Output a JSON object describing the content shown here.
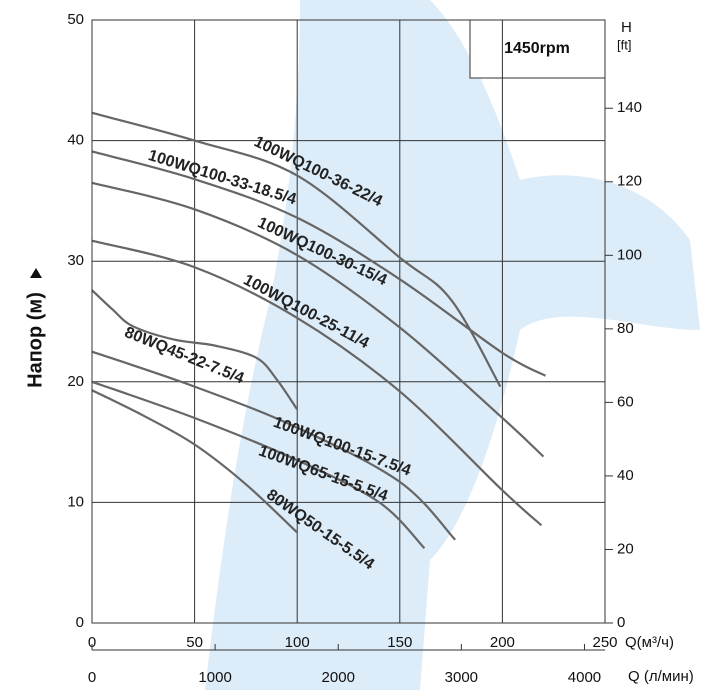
{
  "chart_data": {
    "type": "line",
    "annotation": "1450rpm",
    "ylabel": "Напор (м)",
    "y2label": [
      "H",
      "[ft]"
    ],
    "xlabel": "Q(м³/ч)",
    "x2label": "Q (л/мин)",
    "xlim": [
      0,
      250
    ],
    "xticks": [
      0,
      50,
      100,
      150,
      200,
      250
    ],
    "ylim": [
      0,
      50
    ],
    "yticks": [
      0,
      10,
      20,
      30,
      40,
      50
    ],
    "y2lim": [
      0,
      164
    ],
    "y2ticks": [
      0,
      20,
      40,
      60,
      80,
      100,
      120,
      140
    ],
    "x2lim": [
      0,
      4166.7
    ],
    "x2ticks": [
      0,
      1000,
      2000,
      3000,
      4000
    ],
    "grid": true,
    "series": [
      {
        "name": "100WQ100-36-22/4",
        "color": "#666666",
        "x": [
          0,
          50,
          100,
          150,
          175,
          199
        ],
        "values": [
          42.3,
          40.0,
          37.1,
          30.3,
          26.8,
          19.6
        ]
      },
      {
        "name": "100WQ100-33-18.5/4",
        "color": "#666666",
        "x": [
          0,
          50,
          100,
          150,
          200,
          221
        ],
        "values": [
          39.1,
          36.8,
          33.6,
          28.5,
          22.4,
          20.5
        ]
      },
      {
        "name": "100WQ100-30-15/4",
        "color": "#666666",
        "x": [
          0,
          50,
          100,
          150,
          200,
          220
        ],
        "values": [
          36.5,
          34.3,
          30.5,
          24.5,
          17.0,
          13.8
        ]
      },
      {
        "name": "100WQ100-25-11/4",
        "color": "#666666",
        "x": [
          0,
          50,
          100,
          150,
          200,
          219
        ],
        "values": [
          31.7,
          29.5,
          25.3,
          19.2,
          11.0,
          8.1
        ]
      },
      {
        "name": "80WQ45-22-7.5/4",
        "color": "#666666",
        "x": [
          0,
          10,
          20,
          40,
          60,
          80,
          90,
          100
        ],
        "values": [
          27.6,
          26.0,
          24.6,
          23.5,
          23.0,
          22.0,
          20.2,
          17.7
        ]
      },
      {
        "name": "100WQ100-15-7.5/4",
        "color": "#666666",
        "x": [
          0,
          50,
          100,
          150,
          177
        ],
        "values": [
          22.5,
          19.6,
          16.2,
          11.7,
          6.9
        ]
      },
      {
        "name": "100WQ65-15-5.5/4",
        "color": "#666666",
        "x": [
          0,
          50,
          100,
          140,
          162
        ],
        "values": [
          20.0,
          17.0,
          13.5,
          10.0,
          6.2
        ]
      },
      {
        "name": "80WQ50-15-5.5/4",
        "color": "#666666",
        "x": [
          0,
          25,
          50,
          75,
          100
        ],
        "values": [
          19.3,
          17.2,
          14.8,
          11.5,
          7.5
        ]
      }
    ]
  }
}
